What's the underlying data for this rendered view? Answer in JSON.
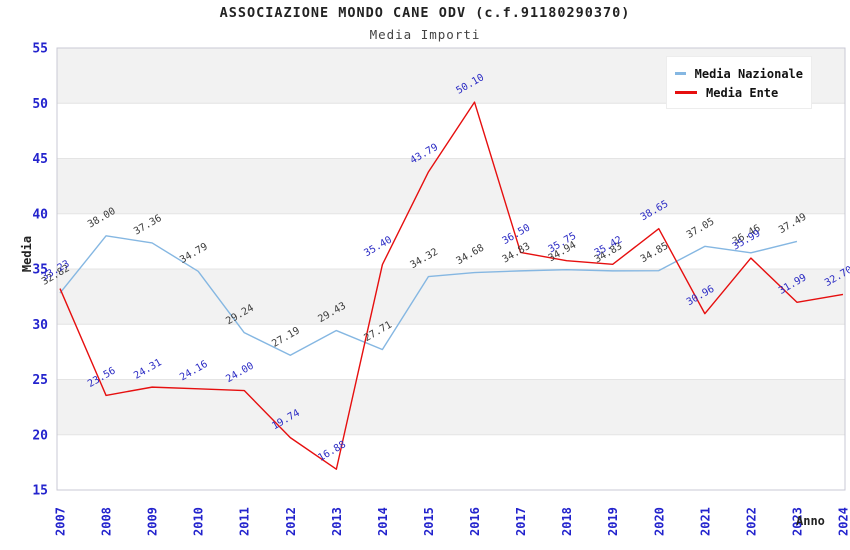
{
  "header": {
    "title": "ASSOCIAZIONE MONDO CANE  ODV (c.f.91180290370)",
    "subtitle": "Media Importi"
  },
  "legend": {
    "items": [
      {
        "label": "Media Nazionale",
        "color": "#85b7e2"
      },
      {
        "label": "Media Ente",
        "color": "#e60f0f"
      }
    ]
  },
  "chart_data": {
    "type": "line",
    "title": "ASSOCIAZIONE MONDO CANE  ODV (c.f.91180290370)",
    "subtitle": "Media Importi",
    "xlabel": "Anno",
    "ylabel": "Media",
    "x": [
      2007,
      2008,
      2009,
      2010,
      2011,
      2012,
      2013,
      2014,
      2015,
      2016,
      2017,
      2018,
      2019,
      2020,
      2021,
      2022,
      2023,
      2024
    ],
    "series": [
      {
        "name": "Media Nazionale",
        "color": "#85b7e2",
        "label_color": "#3c3c3c",
        "values": [
          32.82,
          38.0,
          37.36,
          34.79,
          29.24,
          27.19,
          29.43,
          27.71,
          34.32,
          34.68,
          34.83,
          34.94,
          34.83,
          34.85,
          37.05,
          36.46,
          37.49,
          null
        ]
      },
      {
        "name": "Media Ente",
        "color": "#e60f0f",
        "label_color": "#2b2bc4",
        "values": [
          33.23,
          23.56,
          24.31,
          24.16,
          24.0,
          19.74,
          16.88,
          35.4,
          43.79,
          50.1,
          36.5,
          35.75,
          35.42,
          38.65,
          30.96,
          35.99,
          31.99,
          32.7
        ]
      }
    ],
    "ylim": [
      15,
      55
    ],
    "ytick_step": 5,
    "grid": "horizontal",
    "band_color_odd": "#f2f2f2",
    "band_color_even": "#ffffff",
    "gridline_color": "#e4e4e4",
    "axis_border_color": "#c9c9d4",
    "tick_label_color": "#2323cd",
    "legend_position": "top-right"
  }
}
